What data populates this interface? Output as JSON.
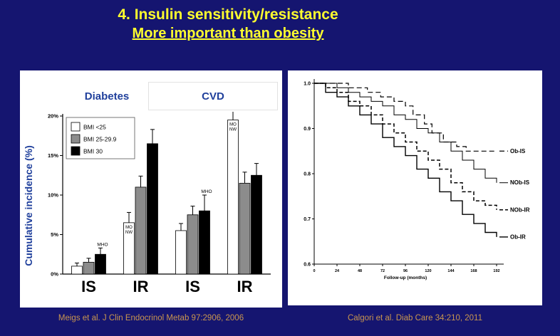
{
  "slide": {
    "title_line1": "4. Insulin sensitivity/resistance",
    "title_line2": "More important than obesity",
    "left_caption": "Meigs et al. J Clin Endocrinol Metab 97:2906, 2006",
    "right_caption": "Calgori et al. Diab Care 34:210, 2011"
  },
  "colors": {
    "background": "#151570",
    "title_text": "#FFFF2E",
    "caption_text": "#C9964F",
    "heading_text": "#20409C",
    "panel_background": "#FFFFFF",
    "bar_white": "#FFFFFF",
    "bar_gray": "#8C8C8C",
    "bar_black": "#000000"
  },
  "chart_data": [
    {
      "type": "bar",
      "headings": [
        "Diabetes",
        "CVD"
      ],
      "ylabel": "Cumulative incidence (%)",
      "ylim": [
        0,
        20
      ],
      "yticks": [
        "0%",
        "5%",
        "10%",
        "15%",
        "20%"
      ],
      "categories": [
        "IS",
        "IR",
        "IS",
        "IR"
      ],
      "legend_position": "top-left",
      "series": [
        {
          "name": "BMI <25",
          "color": "#FFFFFF",
          "values": [
            1.0,
            6.5,
            5.5,
            19.5
          ],
          "errors": [
            0.4,
            1.3,
            0.9,
            2.0
          ]
        },
        {
          "name": "BMI 25-29.9",
          "color": "#8C8C8C",
          "values": [
            1.5,
            11.0,
            7.5,
            11.5
          ],
          "errors": [
            0.5,
            1.4,
            1.1,
            1.4
          ]
        },
        {
          "name": "BMI 30",
          "color": "#000000",
          "values": [
            2.5,
            16.5,
            8.0,
            12.5
          ],
          "errors": [
            0.8,
            1.8,
            2.0,
            1.5
          ]
        }
      ],
      "annotations": [
        {
          "text": "MHO",
          "group": 0,
          "series": 2,
          "placement": "above"
        },
        {
          "text": "MO NW",
          "group": 1,
          "series": 0,
          "placement": "inside"
        },
        {
          "text": "MHO",
          "group": 2,
          "series": 2,
          "placement": "above"
        },
        {
          "text": "MO NW",
          "group": 3,
          "series": 0,
          "placement": "inside"
        }
      ]
    },
    {
      "type": "line",
      "xlabel": "Follow-up (months)",
      "xlim": [
        0,
        192
      ],
      "xticks": [
        0,
        24,
        48,
        72,
        96,
        120,
        144,
        168,
        192
      ],
      "ylim": [
        0.6,
        1.0
      ],
      "yticks": [
        "1.0",
        "0.9",
        "0.8",
        "0.7",
        "0.6"
      ],
      "step": true,
      "grid": false,
      "series": [
        {
          "name": "Ob-IS",
          "dash": "7,4",
          "width": 1.2,
          "label_y": 0.85,
          "points": [
            [
              0,
              1.0
            ],
            [
              30,
              1.0
            ],
            [
              36,
              0.99
            ],
            [
              48,
              0.99
            ],
            [
              56,
              0.98
            ],
            [
              70,
              0.97
            ],
            [
              84,
              0.96
            ],
            [
              96,
              0.95
            ],
            [
              104,
              0.93
            ],
            [
              116,
              0.91
            ],
            [
              124,
              0.89
            ],
            [
              136,
              0.87
            ],
            [
              150,
              0.86
            ],
            [
              160,
              0.85
            ],
            [
              192,
              0.85
            ]
          ]
        },
        {
          "name": "NOb-IS",
          "dash": "",
          "width": 1.0,
          "label_y": 0.78,
          "points": [
            [
              0,
              1.0
            ],
            [
              12,
              1.0
            ],
            [
              24,
              0.99
            ],
            [
              36,
              0.98
            ],
            [
              48,
              0.97
            ],
            [
              60,
              0.96
            ],
            [
              72,
              0.95
            ],
            [
              84,
              0.93
            ],
            [
              96,
              0.92
            ],
            [
              108,
              0.9
            ],
            [
              120,
              0.89
            ],
            [
              132,
              0.87
            ],
            [
              144,
              0.85
            ],
            [
              156,
              0.83
            ],
            [
              168,
              0.81
            ],
            [
              180,
              0.79
            ],
            [
              192,
              0.78
            ]
          ]
        },
        {
          "name": "NOb-IR",
          "dash": "5,3",
          "width": 1.5,
          "label_y": 0.72,
          "points": [
            [
              0,
              1.0
            ],
            [
              12,
              0.99
            ],
            [
              24,
              0.98
            ],
            [
              36,
              0.96
            ],
            [
              48,
              0.95
            ],
            [
              60,
              0.93
            ],
            [
              72,
              0.91
            ],
            [
              84,
              0.89
            ],
            [
              96,
              0.87
            ],
            [
              108,
              0.85
            ],
            [
              120,
              0.83
            ],
            [
              132,
              0.81
            ],
            [
              144,
              0.78
            ],
            [
              156,
              0.76
            ],
            [
              168,
              0.74
            ],
            [
              180,
              0.73
            ],
            [
              192,
              0.72
            ]
          ]
        },
        {
          "name": "Ob-IR",
          "dash": "",
          "width": 1.4,
          "label_y": 0.66,
          "points": [
            [
              0,
              1.0
            ],
            [
              12,
              0.98
            ],
            [
              24,
              0.97
            ],
            [
              36,
              0.95
            ],
            [
              48,
              0.93
            ],
            [
              60,
              0.91
            ],
            [
              72,
              0.88
            ],
            [
              84,
              0.86
            ],
            [
              96,
              0.84
            ],
            [
              108,
              0.81
            ],
            [
              120,
              0.79
            ],
            [
              132,
              0.76
            ],
            [
              144,
              0.74
            ],
            [
              156,
              0.71
            ],
            [
              168,
              0.69
            ],
            [
              180,
              0.67
            ],
            [
              192,
              0.66
            ]
          ]
        }
      ]
    }
  ]
}
